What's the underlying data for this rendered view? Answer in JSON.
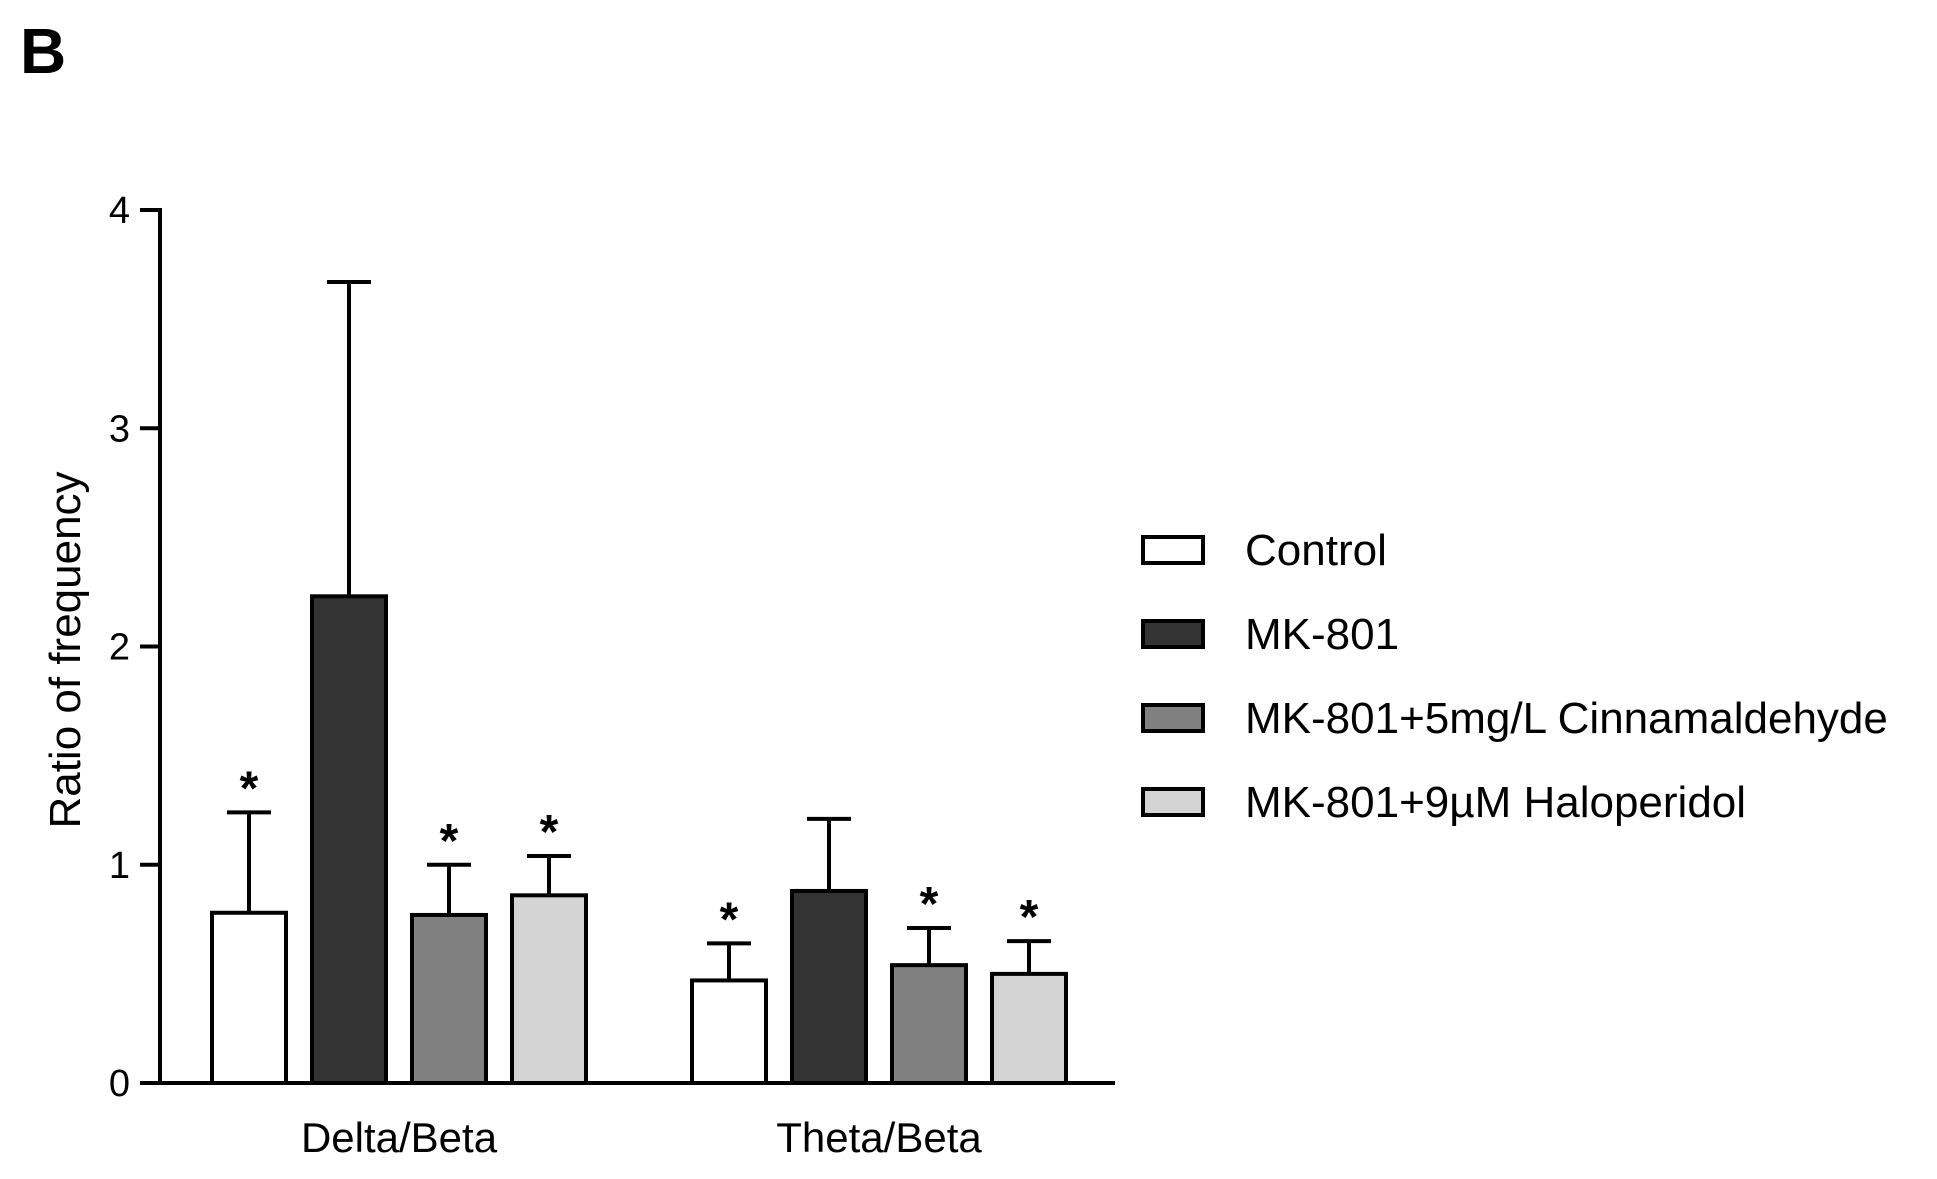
{
  "panel_label": "B",
  "chart_data": {
    "type": "bar",
    "title": "",
    "xlabel": "",
    "ylabel": "Ratio of frequency",
    "ylim": [
      0,
      4
    ],
    "yticks": [
      0,
      1,
      2,
      3,
      4
    ],
    "grid": false,
    "legend_position": "right",
    "categories": [
      "Delta/Beta",
      "Theta/Beta"
    ],
    "series": [
      {
        "name": "Control",
        "color": "#ffffff",
        "values": [
          0.78,
          0.47
        ],
        "errors": [
          0.46,
          0.17
        ],
        "significance": [
          "*",
          "*"
        ]
      },
      {
        "name": "MK-801",
        "color": "#333333",
        "values": [
          2.23,
          0.88
        ],
        "errors": [
          1.44,
          0.33
        ],
        "significance": [
          "",
          ""
        ]
      },
      {
        "name": "MK-801+5mg/L Cinnamaldehyde",
        "color": "#808080",
        "values": [
          0.77,
          0.54
        ],
        "errors": [
          0.23,
          0.17
        ],
        "significance": [
          "*",
          "*"
        ]
      },
      {
        "name": "MK-801+9µM Haloperidol",
        "color": "#d4d4d4",
        "values": [
          0.86,
          0.5
        ],
        "errors": [
          0.18,
          0.15
        ],
        "significance": [
          "*",
          "*"
        ]
      }
    ]
  }
}
